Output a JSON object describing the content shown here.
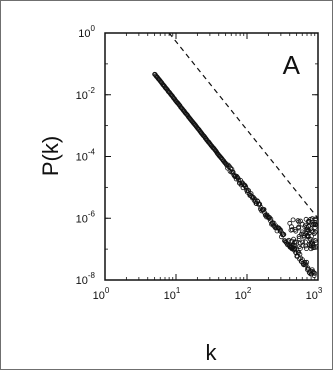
{
  "chart_data": {
    "type": "scatter",
    "panel_label": "A",
    "xlabel": "k",
    "ylabel": "P(k)",
    "xscale": "log",
    "yscale": "log",
    "xlim": [
      1,
      1000
    ],
    "ylim": [
      1e-08,
      1
    ],
    "x_ticks": [
      {
        "base": "10",
        "exp": "0",
        "value": 1
      },
      {
        "base": "10",
        "exp": "1",
        "value": 10
      },
      {
        "base": "10",
        "exp": "2",
        "value": 100
      },
      {
        "base": "10",
        "exp": "3",
        "value": 1000
      }
    ],
    "y_ticks": [
      {
        "base": "10",
        "exp": "0",
        "value": 1
      },
      {
        "base": "10",
        "exp": "-2",
        "value": 0.01
      },
      {
        "base": "10",
        "exp": "-4",
        "value": 0.0001
      },
      {
        "base": "10",
        "exp": "-6",
        "value": 1e-06
      },
      {
        "base": "10",
        "exp": "-8",
        "value": 1e-08
      }
    ],
    "grid": false,
    "marker": "open-circle",
    "series": [
      {
        "style": "markers",
        "power_law": {
          "k_min": 5,
          "k_max": 900,
          "prefactor": 5,
          "exponent": -2.9,
          "points": 260
        },
        "tail_scatter": {
          "k_min": 400,
          "k_max": 950,
          "p_min": 1e-07,
          "p_max": 1e-06,
          "points": 90
        }
      },
      {
        "style": "dashed-line",
        "x": [
          8,
          1000
        ],
        "y": [
          1,
          1e-06
        ]
      }
    ],
    "colors": {
      "ink": "#111111",
      "frame": "#6f6f6f",
      "background": "#ffffff"
    }
  }
}
